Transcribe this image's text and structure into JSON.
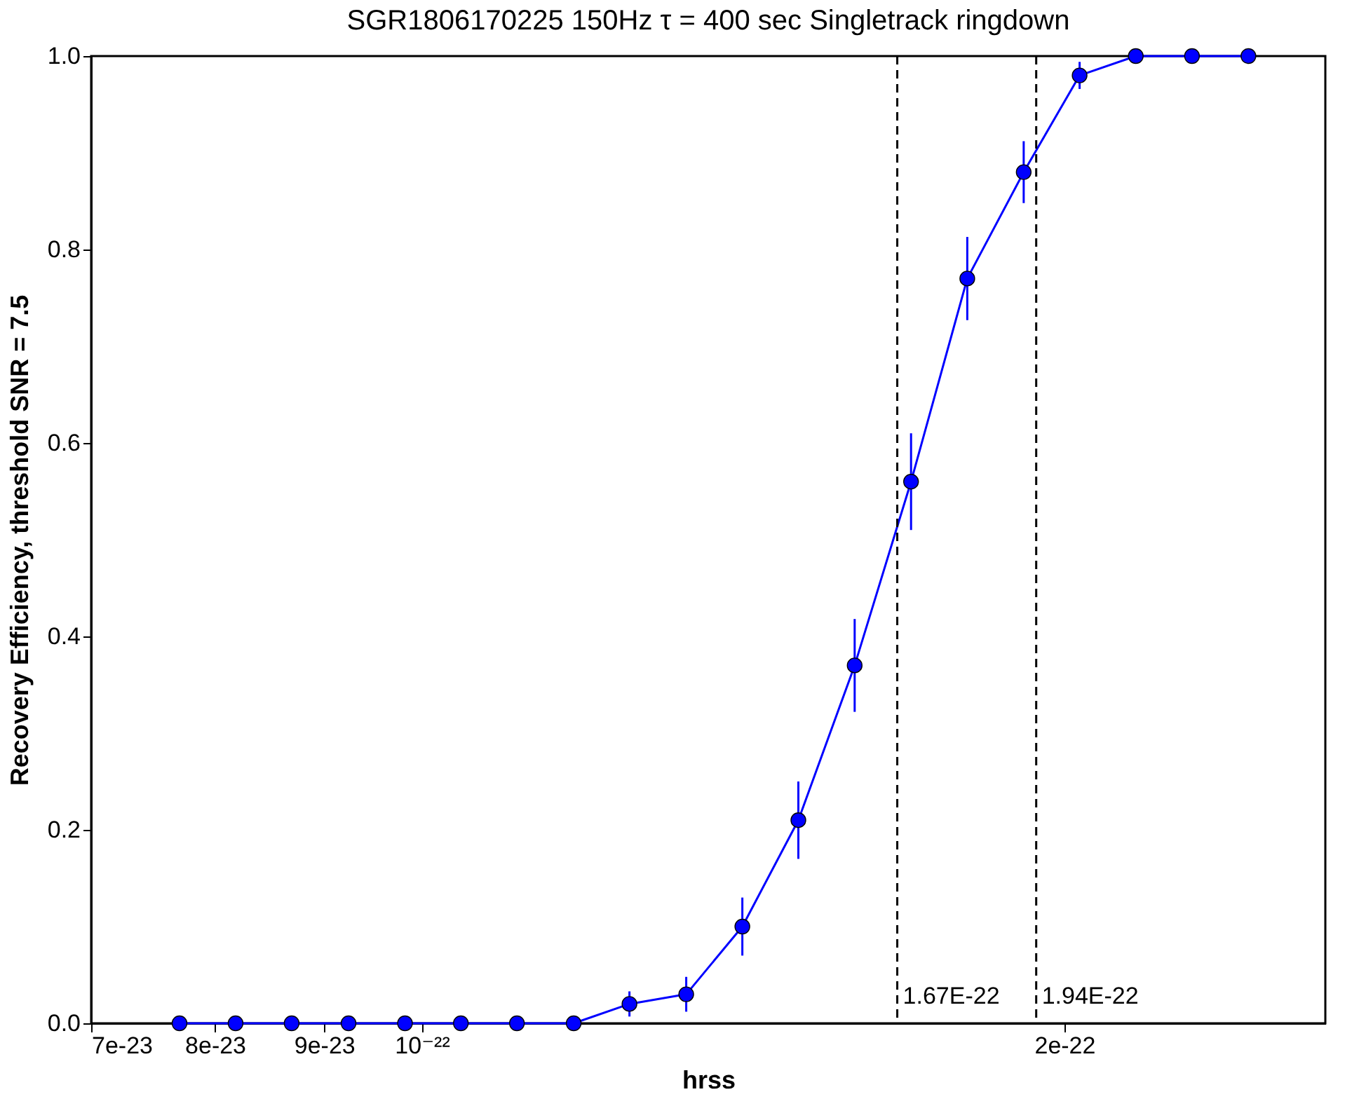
{
  "chart_data": {
    "type": "line",
    "title": "SGR1806170225 150Hz τ = 400 sec Singletrack ringdown",
    "xlabel": "hrss",
    "ylabel": "Recovery Efficiency, threshold SNR = 7.5",
    "log": "x",
    "marker": "circle",
    "line_style": "solid",
    "x": [
      7.7e-23,
      8.18e-23,
      8.69e-23,
      9.24e-23,
      9.82e-23,
      1.043e-22,
      1.108e-22,
      1.178e-22,
      1.251e-22,
      1.33e-22,
      1.413e-22,
      1.501e-22,
      1.595e-22,
      1.695e-22,
      1.801e-22,
      1.914e-22,
      2.033e-22,
      2.16e-22,
      2.295e-22,
      2.439e-22
    ],
    "series": [
      {
        "color": "#0000ff",
        "values": [
          0,
          0,
          0,
          0,
          0,
          0,
          0,
          0,
          0.02,
          0.03,
          0.1,
          0.21,
          0.37,
          0.56,
          0.77,
          0.88,
          0.98,
          1,
          1,
          1
        ],
        "errors": [
          null,
          null,
          null,
          null,
          null,
          null,
          null,
          null,
          0.013,
          0.018,
          0.03,
          0.04,
          0.048,
          0.05,
          0.043,
          0.032,
          0.014,
          null,
          null,
          null
        ]
      }
    ],
    "xlim": [
      7e-23,
      2.65e-22
    ],
    "xticks": [
      {
        "value": 7e-23,
        "label": "7e-23"
      },
      {
        "value": 8e-23,
        "label": "8e-23"
      },
      {
        "value": 9e-23,
        "label": "9e-23"
      },
      {
        "value": 1e-22,
        "label": "10⁻²²"
      },
      {
        "value": 2e-22,
        "label": "2e-22"
      }
    ],
    "ylim": [
      0,
      1
    ],
    "yticks": [
      {
        "value": 0,
        "label": "0.0"
      },
      {
        "value": 0.2,
        "label": "0.2"
      },
      {
        "value": 0.4,
        "label": "0.4"
      },
      {
        "value": 0.6,
        "label": "0.6"
      },
      {
        "value": 0.8,
        "label": "0.8"
      },
      {
        "value": 1,
        "label": "1.0"
      }
    ],
    "ref_lines": [
      {
        "axis": "x",
        "value": 1.67e-22,
        "label": "1.67E-22",
        "color": "#000000",
        "line_style": "dashed"
      },
      {
        "axis": "x",
        "value": 1.94e-22,
        "label": "1.94E-22",
        "color": "#000000",
        "line_style": "dashed"
      }
    ]
  }
}
